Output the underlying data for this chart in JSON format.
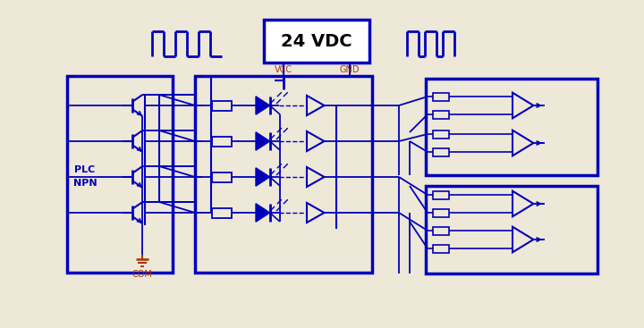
{
  "bg_color": "#ede8d8",
  "line_color": "#0000bb",
  "vcc_gnd_color": "#aa3300",
  "label_plc": "PLC",
  "label_npn": "NPN",
  "label_com": "COM",
  "label_vcc": "VCC",
  "label_gnd": "GND",
  "label_24vdc": "24 VDC",
  "fig_w": 7.2,
  "fig_h": 3.67,
  "dpi": 100
}
